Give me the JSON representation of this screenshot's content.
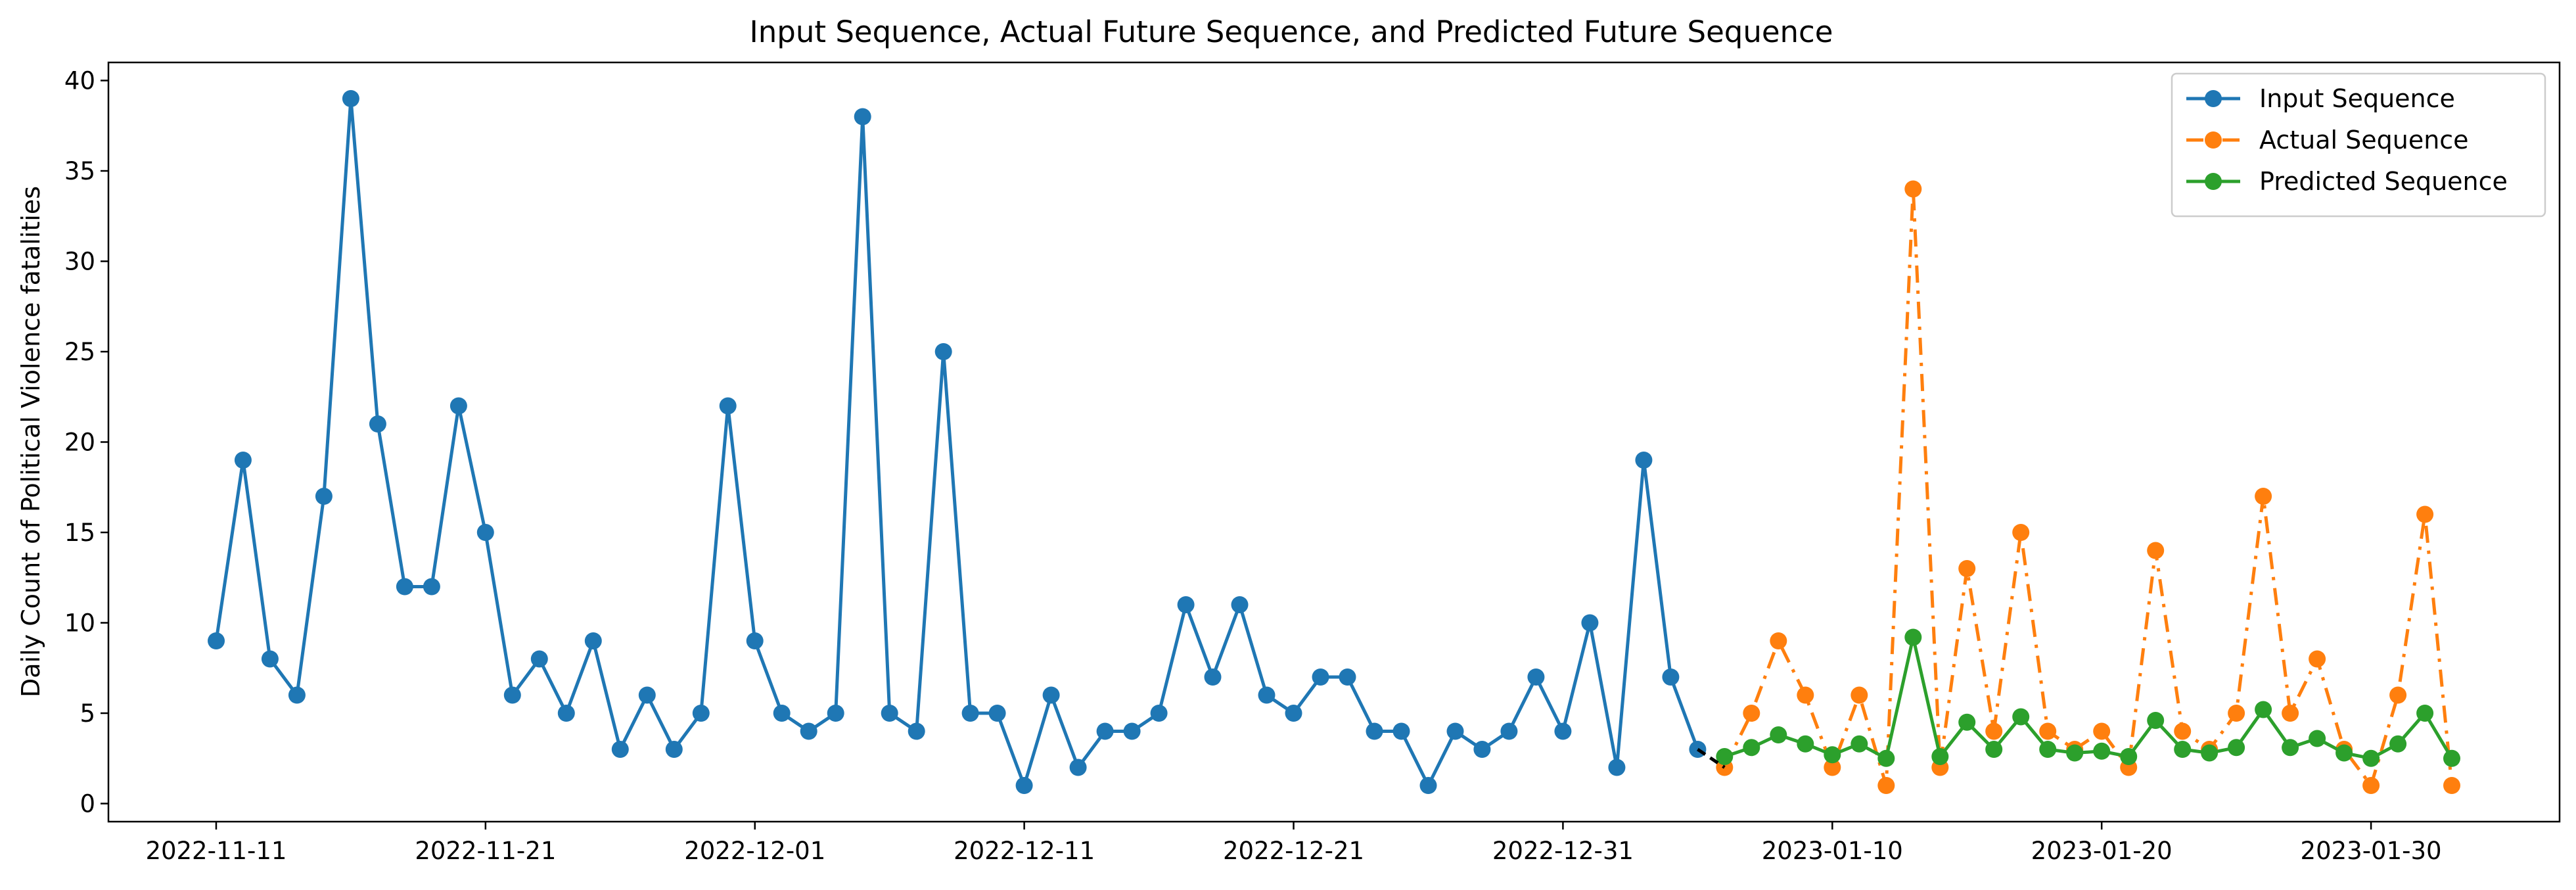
{
  "chart_data": {
    "type": "line",
    "title": "Input Sequence, Actual Future Sequence, and Predicted Future Sequence",
    "xlabel": "",
    "ylabel": "Daily Count of Political Violence fatalities",
    "x_axis_type": "date",
    "xlim": [
      "2022-11-07",
      "2023-02-06"
    ],
    "ylim": [
      -1,
      41
    ],
    "x_ticks": [
      "2022-11-11",
      "2022-11-21",
      "2022-12-01",
      "2022-12-11",
      "2022-12-21",
      "2022-12-31",
      "2023-01-10",
      "2023-01-20",
      "2023-01-30"
    ],
    "y_ticks": [
      0,
      5,
      10,
      15,
      20,
      25,
      30,
      35,
      40
    ],
    "grid": false,
    "legend_position": "top-right",
    "series": [
      {
        "name": "Input Sequence",
        "color": "#1f77b4",
        "line_style": "solid",
        "marker": "circle",
        "start_date": "2022-11-11",
        "values": [
          9,
          19,
          8,
          6,
          17,
          39,
          21,
          12,
          12,
          22,
          15,
          6,
          8,
          5,
          9,
          3,
          6,
          3,
          5,
          22,
          9,
          5,
          4,
          5,
          38,
          5,
          4,
          25,
          5,
          5,
          1,
          6,
          2,
          4,
          4,
          5,
          11,
          7,
          11,
          6,
          5,
          7,
          7,
          4,
          4,
          1,
          4,
          3,
          4,
          7,
          4,
          10,
          2,
          19,
          7,
          3
        ]
      },
      {
        "name": "Actual Sequence",
        "color": "#ff7f0e",
        "line_style": "dashdot",
        "marker": "circle",
        "start_date": "2023-01-06",
        "values": [
          2,
          5,
          9,
          6,
          2,
          6,
          1,
          34,
          2,
          13,
          4,
          15,
          4,
          3,
          4,
          2,
          14,
          4,
          3,
          5,
          17,
          5,
          8,
          3,
          1,
          6,
          16,
          1
        ]
      },
      {
        "name": "Predicted Sequence",
        "color": "#2ca02c",
        "line_style": "solid",
        "marker": "circle",
        "start_date": "2023-01-06",
        "values": [
          2.6,
          3.1,
          3.8,
          3.3,
          2.7,
          3.3,
          2.5,
          9.2,
          2.6,
          4.5,
          3.0,
          4.8,
          3.0,
          2.8,
          2.9,
          2.6,
          4.6,
          3.0,
          2.8,
          3.1,
          5.2,
          3.1,
          3.6,
          2.8,
          2.5,
          3.3,
          5.0,
          2.5
        ]
      }
    ],
    "connector": {
      "color": "#000000",
      "line_style": "dashed",
      "from": {
        "date": "2023-01-05",
        "value": 3
      },
      "to": {
        "date": "2023-01-06",
        "value": 2
      }
    }
  }
}
